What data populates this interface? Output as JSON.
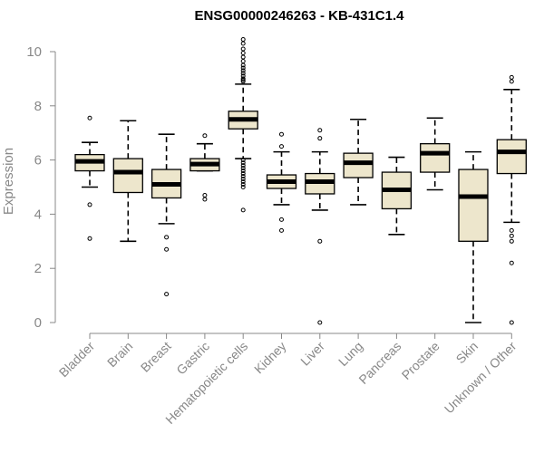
{
  "chart_data": {
    "type": "boxplot",
    "title": "ENSG00000246263 - KB-431C1.4",
    "ylabel": "Expression",
    "xlabel": "",
    "ylim": [
      0,
      10
    ],
    "yticks": [
      0,
      2,
      4,
      6,
      8,
      10
    ],
    "box_fill": "#ede6cc",
    "categories": [
      "Bladder",
      "Brain",
      "Breast",
      "Gastric",
      "Hematopoietic cells",
      "Kidney",
      "Liver",
      "Lung",
      "Pancreas",
      "Prostate",
      "Skin",
      "Unknown / Other"
    ],
    "series": [
      {
        "name": "Bladder",
        "whisker_low": 5.0,
        "q1": 5.6,
        "median": 5.95,
        "q3": 6.2,
        "whisker_high": 6.65,
        "outliers": [
          7.55,
          4.35,
          3.1
        ]
      },
      {
        "name": "Brain",
        "whisker_low": 3.0,
        "q1": 4.8,
        "median": 5.55,
        "q3": 6.05,
        "whisker_high": 7.45,
        "outliers": []
      },
      {
        "name": "Breast",
        "whisker_low": 3.65,
        "q1": 4.6,
        "median": 5.1,
        "q3": 5.65,
        "whisker_high": 6.95,
        "outliers": [
          3.15,
          2.7,
          1.05
        ]
      },
      {
        "name": "Gastric",
        "whisker_low": 5.6,
        "q1": 5.6,
        "median": 5.85,
        "q3": 6.05,
        "whisker_high": 6.6,
        "outliers": [
          6.9,
          4.7,
          4.55
        ]
      },
      {
        "name": "Hematopoietic cells",
        "whisker_low": 6.05,
        "q1": 7.15,
        "median": 7.5,
        "q3": 7.8,
        "whisker_high": 8.8,
        "outliers": [
          10.45,
          10.3,
          10.1,
          9.95,
          9.8,
          9.65,
          9.5,
          9.4,
          9.3,
          9.2,
          9.1,
          9.0,
          8.95,
          8.9,
          6.0,
          5.9,
          5.8,
          5.7,
          5.6,
          5.5,
          5.4,
          5.3,
          5.2,
          5.1,
          5.0,
          4.15
        ]
      },
      {
        "name": "Kidney",
        "whisker_low": 4.35,
        "q1": 4.95,
        "median": 5.2,
        "q3": 5.45,
        "whisker_high": 6.3,
        "outliers": [
          6.95,
          6.5,
          3.8,
          3.4
        ]
      },
      {
        "name": "Liver",
        "whisker_low": 4.15,
        "q1": 4.75,
        "median": 5.2,
        "q3": 5.5,
        "whisker_high": 6.3,
        "outliers": [
          7.1,
          6.8,
          3.0,
          0.0
        ]
      },
      {
        "name": "Lung",
        "whisker_low": 4.35,
        "q1": 5.35,
        "median": 5.9,
        "q3": 6.25,
        "whisker_high": 7.5,
        "outliers": []
      },
      {
        "name": "Pancreas",
        "whisker_low": 3.25,
        "q1": 4.2,
        "median": 4.9,
        "q3": 5.55,
        "whisker_high": 6.1,
        "outliers": []
      },
      {
        "name": "Prostate",
        "whisker_low": 4.9,
        "q1": 5.55,
        "median": 6.25,
        "q3": 6.6,
        "whisker_high": 7.55,
        "outliers": []
      },
      {
        "name": "Skin",
        "whisker_low": 0.0,
        "q1": 3.0,
        "median": 4.65,
        "q3": 5.65,
        "whisker_high": 6.3,
        "outliers": []
      },
      {
        "name": "Unknown / Other",
        "whisker_low": 3.7,
        "q1": 5.5,
        "median": 6.3,
        "q3": 6.75,
        "whisker_high": 8.6,
        "outliers": [
          9.05,
          8.9,
          3.4,
          3.2,
          3.0,
          2.2,
          0.0
        ]
      }
    ]
  }
}
